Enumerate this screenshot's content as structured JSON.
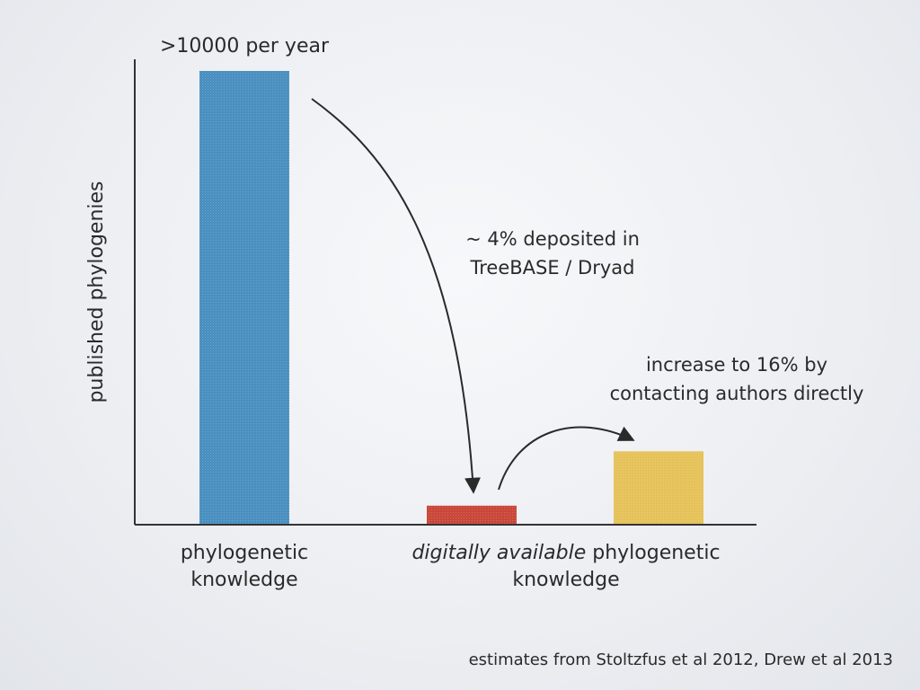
{
  "chart_data": {
    "type": "bar",
    "ylabel": "published phylogenies",
    "bars": [
      {
        "name": "phylogenetic knowledge",
        "value": 100,
        "color": "#4a90c0"
      },
      {
        "name": "deposited in TreeBASE / Dryad",
        "value": 4,
        "color": "#c9483a"
      },
      {
        "name": "after contacting authors",
        "value": 16,
        "color": "#e6c25a"
      }
    ],
    "ylim": [
      0,
      100
    ],
    "annotations": {
      "top": ">10000 per year",
      "deposit_line1": "~ 4% deposited in",
      "deposit_line2": "TreeBASE / Dryad",
      "increase_line1": "increase to 16% by",
      "increase_line2": "contacting authors directly"
    }
  },
  "captions": {
    "left_line1": "phylogenetic",
    "left_line2": "knowledge",
    "right_line1_italic": "digitally available",
    "right_line1_rest": " phylogenetic",
    "right_line2": "knowledge"
  },
  "credit": "estimates from Stoltzfus et al 2012, Drew et al 2013"
}
